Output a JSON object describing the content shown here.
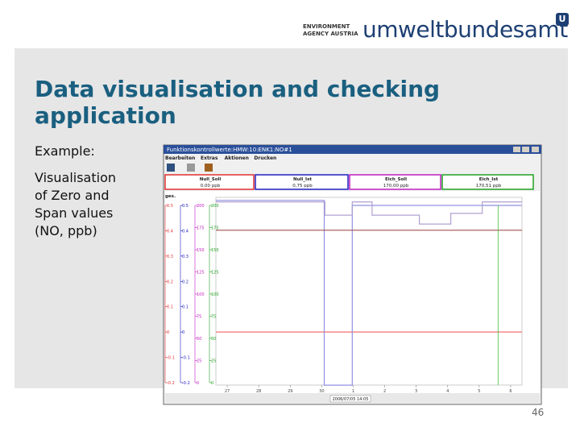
{
  "logo": {
    "line1": "ENVIRONMENT",
    "line2": "AGENCY AUSTRIA",
    "name": "umweltbundesamt",
    "mark": "U"
  },
  "slide": {
    "title": "Data visualisation and checking application",
    "example": "Example:",
    "description": "Visualisation of Zero and Span values (NO, ppb)",
    "page": "46"
  },
  "app": {
    "window_title": "Funktionskontrollwerte:HMW:10:ENK1:NO#1",
    "menu": [
      "Bearbeiten",
      "Extras",
      "Aktionen",
      "Drucken"
    ],
    "panels": [
      {
        "name": "Null_Soll",
        "value": "0,00 ppb",
        "color": "#e03030"
      },
      {
        "name": "Null_Ist",
        "value": "0,75 ppb",
        "color": "#2020c0"
      },
      {
        "name": "Eich_Soll",
        "value": "170,00 ppb",
        "color": "#c020c0"
      },
      {
        "name": "Eich_Ist",
        "value": "170,51 ppb",
        "color": "#20a020"
      }
    ],
    "axis_title": "ges.",
    "cursor_label": "2006/07/05 14:05",
    "chart": {
      "type": "line",
      "axes": [
        {
          "color": "#e03030",
          "ylim": [
            -0.2,
            0.5
          ],
          "yticks": [
            0.5,
            0.4,
            0.3,
            0.2,
            0.1,
            0,
            -0.1,
            -0.2
          ]
        },
        {
          "color": "#2020c0",
          "ylim": [
            -0.2,
            0.5
          ],
          "yticks": [
            0.5,
            0.4,
            0.3,
            0.2,
            0.1,
            0,
            -0.1,
            -0.2
          ]
        },
        {
          "color": "#c020c0",
          "ylim": [
            0,
            200
          ],
          "yticks": [
            200,
            175,
            150,
            125,
            100,
            75,
            50,
            25,
            0
          ]
        },
        {
          "color": "#20a020",
          "ylim": [
            0,
            200
          ],
          "yticks": [
            200,
            175,
            150,
            125,
            100,
            75,
            50,
            25,
            0
          ]
        }
      ],
      "xlim": [
        -0.36,
        9.36
      ],
      "xticks": [
        {
          "value": 0,
          "label": "27"
        },
        {
          "value": 1,
          "label": "28"
        },
        {
          "value": 2,
          "label": "29"
        },
        {
          "value": 3,
          "label": "30"
        },
        {
          "value": 4,
          "label": "1"
        },
        {
          "value": 5,
          "label": "2"
        },
        {
          "value": 6,
          "label": "3"
        },
        {
          "value": 7,
          "label": "4"
        },
        {
          "value": 8,
          "label": "5"
        },
        {
          "value": 9,
          "label": "6"
        }
      ],
      "series": [
        {
          "color": "#f07070",
          "axis": 0,
          "x": [
            -0.36,
            9.36
          ],
          "values": [
            0,
            0
          ]
        },
        {
          "color": "#9090e0",
          "axis": 1,
          "x": [
            -0.36,
            3.08,
            3.08,
            3.97,
            3.97,
            9.36
          ],
          "values": [
            0.52,
            0.52,
            -0.21,
            -0.21,
            0.5,
            0.5
          ]
        },
        {
          "color": "#a05050",
          "axis": 2,
          "x": [
            -0.36,
            9.36
          ],
          "values": [
            172,
            172
          ]
        },
        {
          "color": "#b0a0d0",
          "axis": 3,
          "x": [
            -0.36,
            3.1,
            3.1,
            3.97,
            3.97,
            4.6,
            4.6,
            6.1,
            6.1,
            7.1,
            7.1,
            8.1,
            8.1,
            9.36
          ],
          "values": [
            204,
            204,
            189,
            189,
            204,
            204,
            189,
            189,
            179,
            179,
            191,
            191,
            204,
            204
          ]
        }
      ],
      "cursor": 8.6
    }
  }
}
